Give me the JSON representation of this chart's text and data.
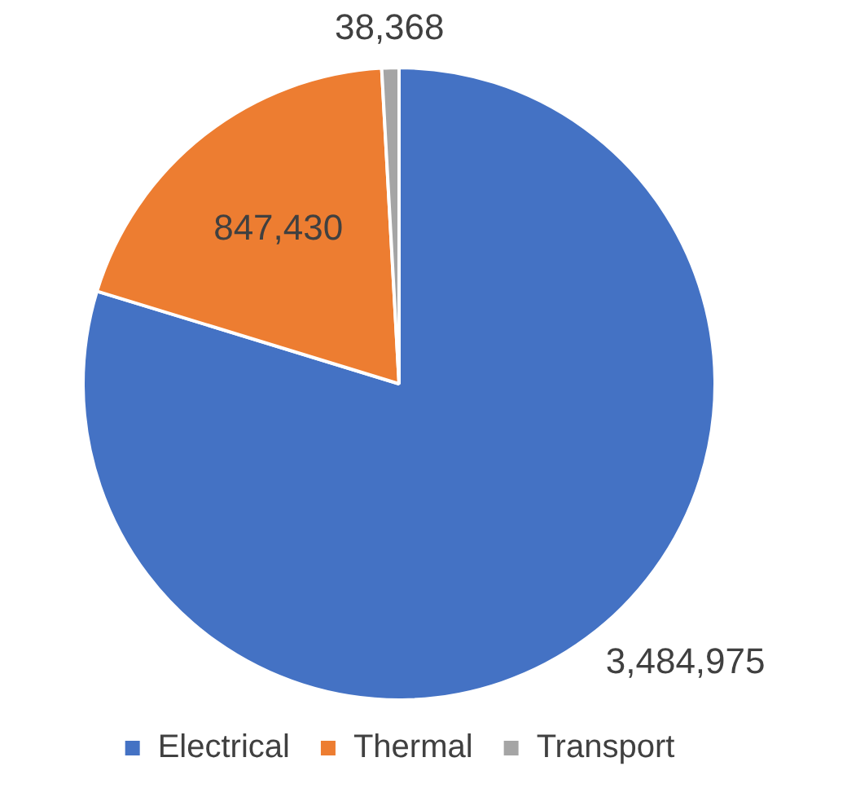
{
  "chart_data": {
    "type": "pie",
    "categories": [
      "Electrical",
      "Thermal",
      "Transport"
    ],
    "values": [
      3484975,
      847430,
      38368
    ],
    "colors": [
      "#4472c4",
      "#ed7d31",
      "#a5a5a5"
    ],
    "value_labels": [
      "3,484,975",
      "847,430",
      "38,368"
    ],
    "legend": "bottom"
  }
}
